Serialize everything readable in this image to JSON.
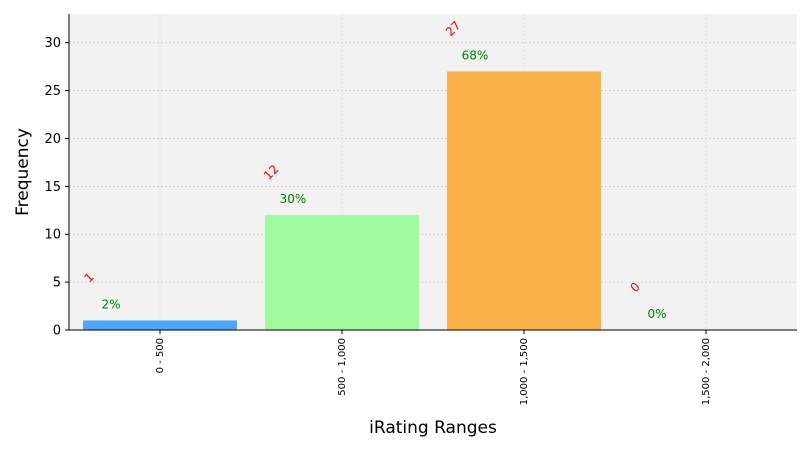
{
  "chart_data": {
    "type": "bar",
    "title": "",
    "xlabel": "iRating Ranges",
    "ylabel": "Frequency",
    "categories": [
      "0 - 500",
      "500 - 1,000",
      "1,000 - 1,500",
      "1,500 - 2,000"
    ],
    "values": [
      1,
      12,
      27,
      0
    ],
    "count_labels": [
      "1",
      "12",
      "27",
      "0"
    ],
    "percent_labels": [
      "2%",
      "30%",
      "68%",
      "0%"
    ],
    "colors": [
      "#4da6ff",
      "#a0fb9e",
      "#fbb14a",
      "#d9d9d9"
    ],
    "count_label_color": "#ff0000",
    "percent_label_color": "#008000",
    "ylim": [
      0,
      33
    ],
    "yticks": [
      0,
      5,
      10,
      15,
      20,
      25,
      30
    ],
    "ytick_labels": [
      "0",
      "5",
      "10",
      "15",
      "20",
      "25",
      "30"
    ],
    "grid": true,
    "legend": "none",
    "plot_background": "#f2f2f2"
  }
}
